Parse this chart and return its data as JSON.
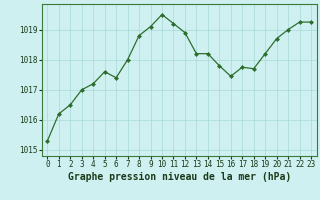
{
  "x": [
    0,
    1,
    2,
    3,
    4,
    5,
    6,
    7,
    8,
    9,
    10,
    11,
    12,
    13,
    14,
    15,
    16,
    17,
    18,
    19,
    20,
    21,
    22,
    23
  ],
  "y": [
    1015.3,
    1016.2,
    1016.5,
    1017.0,
    1017.2,
    1017.6,
    1017.4,
    1018.0,
    1018.8,
    1019.1,
    1019.5,
    1019.2,
    1018.9,
    1018.2,
    1018.2,
    1017.8,
    1017.45,
    1017.75,
    1017.7,
    1018.2,
    1018.7,
    1019.0,
    1019.25,
    1019.25
  ],
  "line_color": "#2d6e2d",
  "marker": "D",
  "marker_size": 2.0,
  "bg_color": "#cff0f0",
  "grid_color": "#a8d8d8",
  "axis_bg": "#cff0f0",
  "xlabel": "Graphe pression niveau de la mer (hPa)",
  "xlabel_color": "#1a3a1a",
  "xlabel_fontsize": 7,
  "tick_color": "#1a3a1a",
  "tick_fontsize": 5.5,
  "ylim": [
    1014.8,
    1019.85
  ],
  "yticks": [
    1015,
    1016,
    1017,
    1018,
    1019
  ],
  "xlim": [
    -0.5,
    23.5
  ]
}
